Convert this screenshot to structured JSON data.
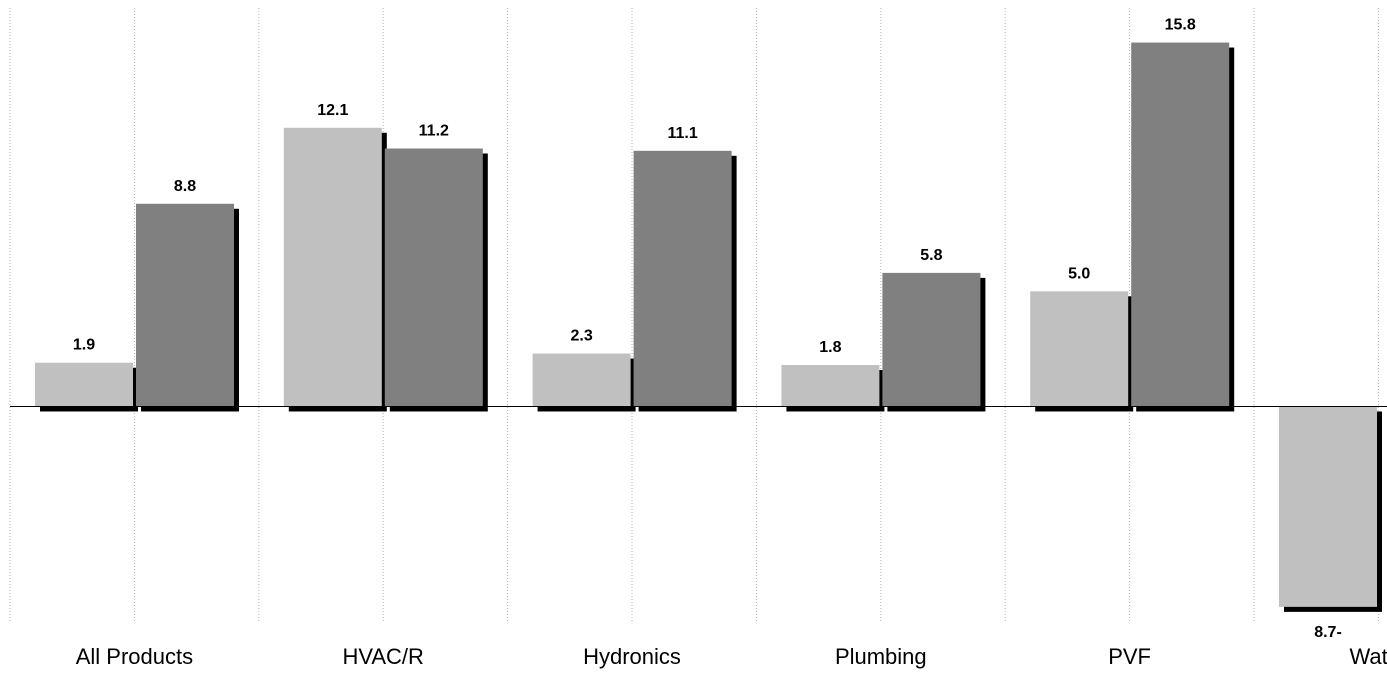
{
  "chart_data": {
    "type": "bar",
    "title": "",
    "xlabel": "",
    "ylabel": "",
    "categories": [
      "All Products",
      "HVAC/R",
      "Hydronics",
      "Plumbing",
      "PVF",
      "Water"
    ],
    "series": [
      {
        "values": [
          1.9,
          12.1,
          2.3,
          1.8,
          5.0,
          -8.7
        ],
        "labels": [
          "1.9",
          "12.1",
          "2.3",
          "1.8",
          "5.0",
          "8.7-"
        ],
        "color": "#c0c0c0"
      },
      {
        "values": [
          8.8,
          11.2,
          11.1,
          5.8,
          15.8,
          null
        ],
        "labels": [
          "8.8",
          "11.2",
          "11.1",
          "5.8",
          "15.8",
          ""
        ],
        "color": "#808080"
      }
    ],
    "ylim": [
      -9.4,
      17.3
    ],
    "grid": "vertical-dotted",
    "legend": "none",
    "shadow_color": "#000000",
    "axis_color": "#000000",
    "grid_color": "#b0b0b0"
  }
}
